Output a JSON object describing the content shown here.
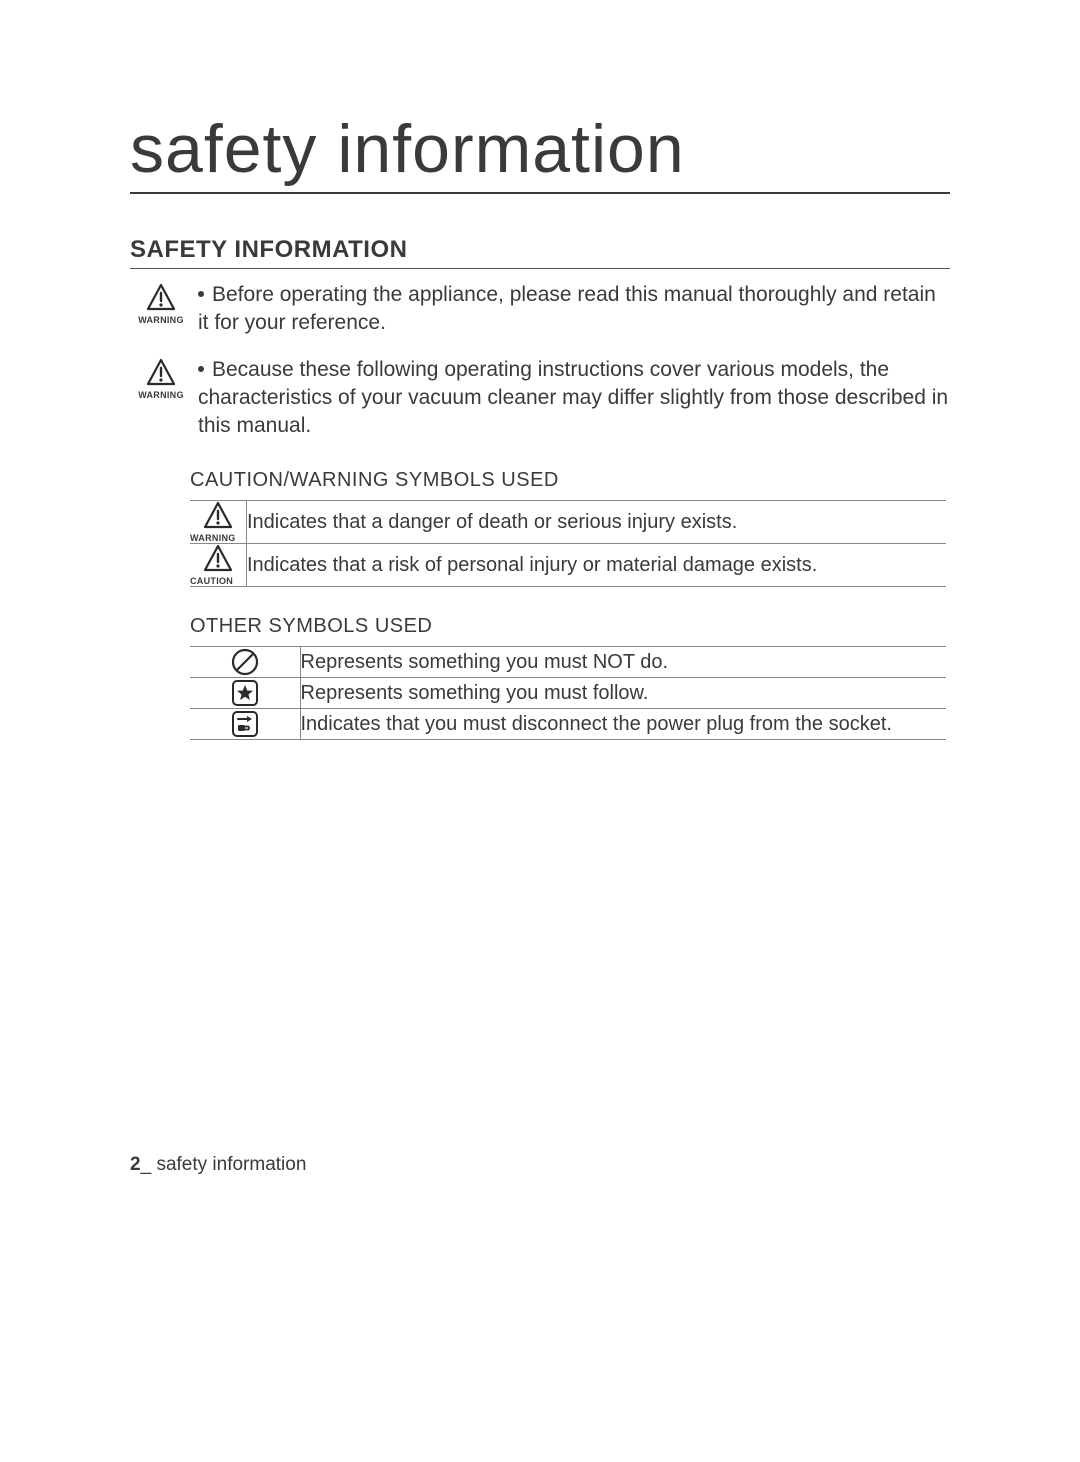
{
  "colors": {
    "text": "#3a3a3a",
    "rule": "#555555",
    "table_border": "#888888",
    "icon_stroke": "#2a2a2a",
    "background": "#ffffff"
  },
  "typography": {
    "main_title_size_pt": 51,
    "section_heading_size_pt": 18,
    "body_size_pt": 16,
    "sub_heading_size_pt": 15,
    "icon_label_size_pt": 7,
    "footer_size_pt": 14
  },
  "main_title": "safety information",
  "section_heading": "SAFETY INFORMATION",
  "warnings": [
    {
      "icon": "warning-triangle",
      "label": "WARNING",
      "text": "Before operating the appliance, please read this manual thoroughly and retain it for your reference."
    },
    {
      "icon": "warning-triangle",
      "label": "WARNING",
      "text": "Because these following operating instructions cover various models, the characteristics of your vacuum cleaner may differ slightly from those described in this manual."
    }
  ],
  "tables": [
    {
      "heading": "CAUTION/WARNING SYMBOLS USED",
      "row_height_class": "sym-cell-tall",
      "rows": [
        {
          "icon": "warning-triangle",
          "label": "WARNING",
          "desc": "Indicates that a danger of death or serious injury exists."
        },
        {
          "icon": "warning-triangle",
          "label": "CAUTION",
          "desc": "Indicates that a risk of personal injury or material damage exists."
        }
      ]
    },
    {
      "heading": "OTHER SYMBOLS USED",
      "row_height_class": "sym-cell",
      "rows": [
        {
          "icon": "prohibit",
          "label": "",
          "desc": "Represents something you must NOT do."
        },
        {
          "icon": "star-box",
          "label": "",
          "desc": "Represents something you must follow."
        },
        {
          "icon": "unplug-box",
          "label": "",
          "desc": "Indicates that you must disconnect the power plug from the socket."
        }
      ]
    }
  ],
  "footer": {
    "page_num": "2",
    "sep": "_ ",
    "title": "safety information"
  }
}
